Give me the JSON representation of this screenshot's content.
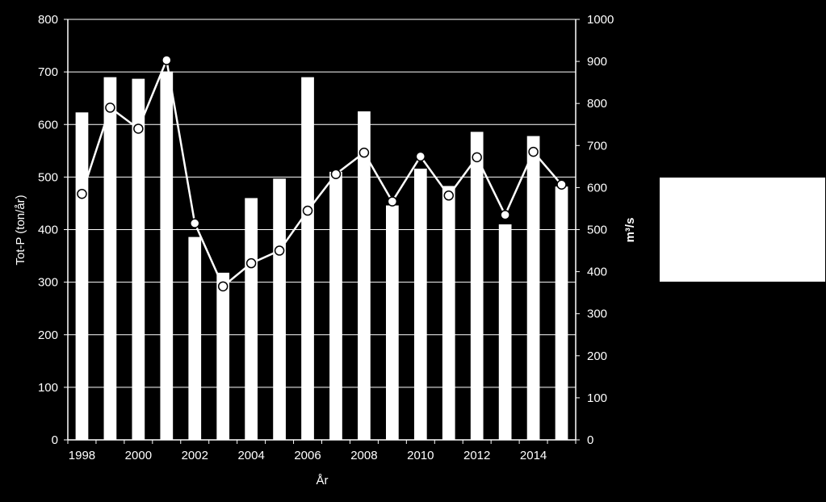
{
  "chart_data": {
    "type": "bar+line",
    "x": [
      1998,
      1999,
      2000,
      2001,
      2002,
      2003,
      2004,
      2005,
      2006,
      2007,
      2008,
      2009,
      2010,
      2011,
      2012,
      2013,
      2014,
      2015
    ],
    "x_tick_labels": [
      "1998",
      "2000",
      "2002",
      "2004",
      "2006",
      "2008",
      "2010",
      "2012",
      "2014"
    ],
    "series": [
      {
        "kind": "bar",
        "axis": "left",
        "values": [
          623,
          690,
          687,
          701,
          386,
          318,
          460,
          497,
          690,
          510,
          625,
          446,
          516,
          483,
          586,
          410,
          578,
          482
        ]
      },
      {
        "kind": "line",
        "axis": "right",
        "values": [
          585,
          790,
          740,
          903,
          515,
          365,
          420,
          450,
          545,
          632,
          683,
          567,
          674,
          581,
          672,
          535,
          685,
          607
        ]
      }
    ],
    "xlabel": "År",
    "ylabel_left": "Tot-P (ton/år)",
    "ylabel_right": "m³/s",
    "ylim_left": [
      0,
      800
    ],
    "ylim_right": [
      0,
      1000
    ],
    "yticks_left": [
      "0",
      "100",
      "200",
      "300",
      "400",
      "500",
      "600",
      "700",
      "800"
    ],
    "yticks_right": [
      "0",
      "100",
      "200",
      "300",
      "400",
      "500",
      "600",
      "700",
      "800",
      "900",
      "1000"
    ],
    "grid": "horizontal",
    "legend": "right",
    "colors": {
      "background": "#000000",
      "foreground": "#ffffff"
    }
  }
}
